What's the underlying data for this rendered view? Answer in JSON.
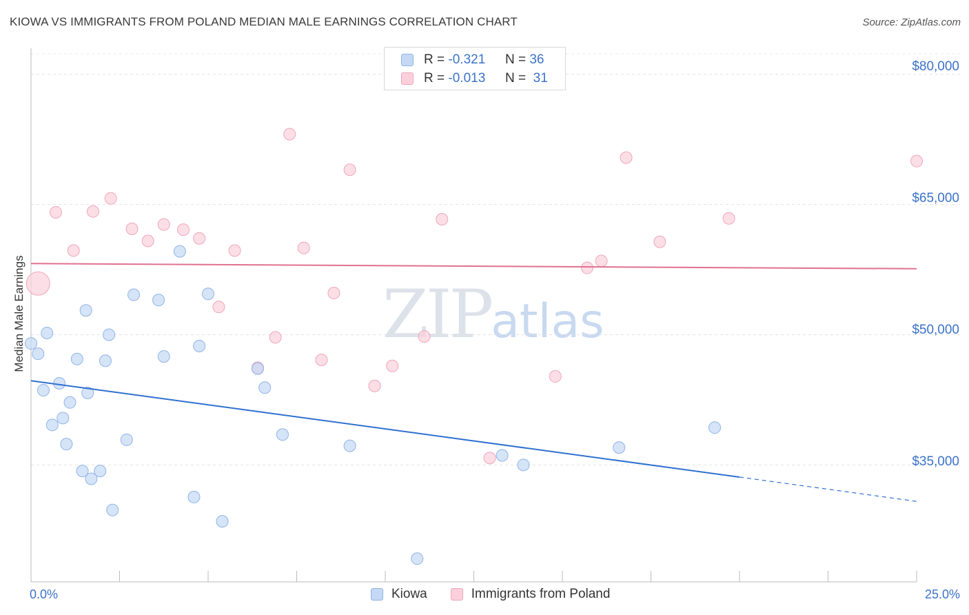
{
  "title": "KIOWA VS IMMIGRANTS FROM POLAND MEDIAN MALE EARNINGS CORRELATION CHART",
  "source": "Source: ZipAtlas.com",
  "watermark": {
    "zip": "ZIP",
    "atlas": "atlas"
  },
  "legend_top": {
    "rows": [
      {
        "r_label": "R =",
        "r_value": "-0.321",
        "n_label": "N =",
        "n_value": "36"
      },
      {
        "r_label": "R =",
        "r_value": "-0.013",
        "n_label": "N =",
        "n_value": "31"
      }
    ]
  },
  "legend_bottom": [
    "Kiowa",
    "Immigrants from Poland"
  ],
  "x_axis": {
    "min_label": "0.0%",
    "max_label": "25.0%"
  },
  "y_axis": {
    "title": "Median Male Earnings",
    "ticks": [
      "$80,000",
      "$65,000",
      "$50,000",
      "$35,000"
    ]
  },
  "colors": {
    "kiowa_fill": "#c5d9f5",
    "kiowa_stroke": "#8fb3e5",
    "kiowa_line": "#2f6fd1",
    "poland_fill": "#fbd0dc",
    "poland_stroke": "#eea6bb",
    "poland_line": "#e0718f",
    "accent": "#3a72c9"
  },
  "chart_data": {
    "type": "scatter",
    "title": "KIOWA VS IMMIGRANTS FROM POLAND MEDIAN MALE EARNINGS CORRELATION CHART",
    "xlabel": "",
    "ylabel": "Median Male Earnings",
    "xlim": [
      0,
      25
    ],
    "ylim": [
      22000,
      83000
    ],
    "y_ticks": [
      35000,
      50000,
      65000,
      80000
    ],
    "grid": true,
    "legend": "bottom",
    "series": [
      {
        "name": "Kiowa",
        "R": -0.321,
        "N": 36,
        "points": [
          [
            0.0,
            49000
          ],
          [
            0.2,
            47800
          ],
          [
            0.35,
            43600
          ],
          [
            0.45,
            50200
          ],
          [
            0.6,
            39600
          ],
          [
            0.8,
            44400
          ],
          [
            0.9,
            40400
          ],
          [
            1.0,
            37400
          ],
          [
            1.1,
            42200
          ],
          [
            1.3,
            47200
          ],
          [
            1.45,
            34300
          ],
          [
            1.55,
            52800
          ],
          [
            1.6,
            43300
          ],
          [
            1.7,
            33400
          ],
          [
            1.95,
            34300
          ],
          [
            2.1,
            47000
          ],
          [
            2.2,
            50000
          ],
          [
            2.3,
            29800
          ],
          [
            2.7,
            37900
          ],
          [
            2.9,
            54600
          ],
          [
            3.6,
            54000
          ],
          [
            3.75,
            47500
          ],
          [
            4.2,
            59600
          ],
          [
            4.6,
            31300
          ],
          [
            4.75,
            48700
          ],
          [
            5.0,
            54700
          ],
          [
            5.4,
            28500
          ],
          [
            6.4,
            46100
          ],
          [
            6.6,
            43900
          ],
          [
            7.1,
            38500
          ],
          [
            9.0,
            37200
          ],
          [
            10.9,
            24200
          ],
          [
            13.3,
            36100
          ],
          [
            13.9,
            35000
          ],
          [
            16.6,
            37000
          ],
          [
            19.3,
            39300
          ]
        ],
        "trend": {
          "x": [
            0,
            20
          ],
          "y": [
            44700,
            33600
          ],
          "dashed_to": [
            25,
            30800
          ]
        }
      },
      {
        "name": "Immigrants from Poland",
        "R": -0.013,
        "N": 31,
        "points": [
          [
            0.2,
            55900
          ],
          [
            0.7,
            64100
          ],
          [
            1.2,
            59700
          ],
          [
            1.75,
            64200
          ],
          [
            2.25,
            65700
          ],
          [
            2.85,
            62200
          ],
          [
            3.3,
            60800
          ],
          [
            3.75,
            62700
          ],
          [
            4.3,
            62100
          ],
          [
            4.75,
            61100
          ],
          [
            5.3,
            53200
          ],
          [
            5.75,
            59700
          ],
          [
            6.4,
            46200
          ],
          [
            6.9,
            49700
          ],
          [
            7.3,
            73100
          ],
          [
            7.7,
            60000
          ],
          [
            8.2,
            47100
          ],
          [
            8.55,
            54800
          ],
          [
            9.0,
            69000
          ],
          [
            9.7,
            44100
          ],
          [
            10.2,
            46400
          ],
          [
            11.1,
            49800
          ],
          [
            11.6,
            63300
          ],
          [
            12.95,
            35800
          ],
          [
            14.8,
            45200
          ],
          [
            15.7,
            57700
          ],
          [
            16.1,
            58500
          ],
          [
            16.8,
            70400
          ],
          [
            17.75,
            60700
          ],
          [
            19.7,
            63400
          ],
          [
            25.0,
            70000
          ]
        ],
        "trend": {
          "x": [
            0,
            25
          ],
          "y": [
            58200,
            57600
          ]
        }
      }
    ]
  }
}
